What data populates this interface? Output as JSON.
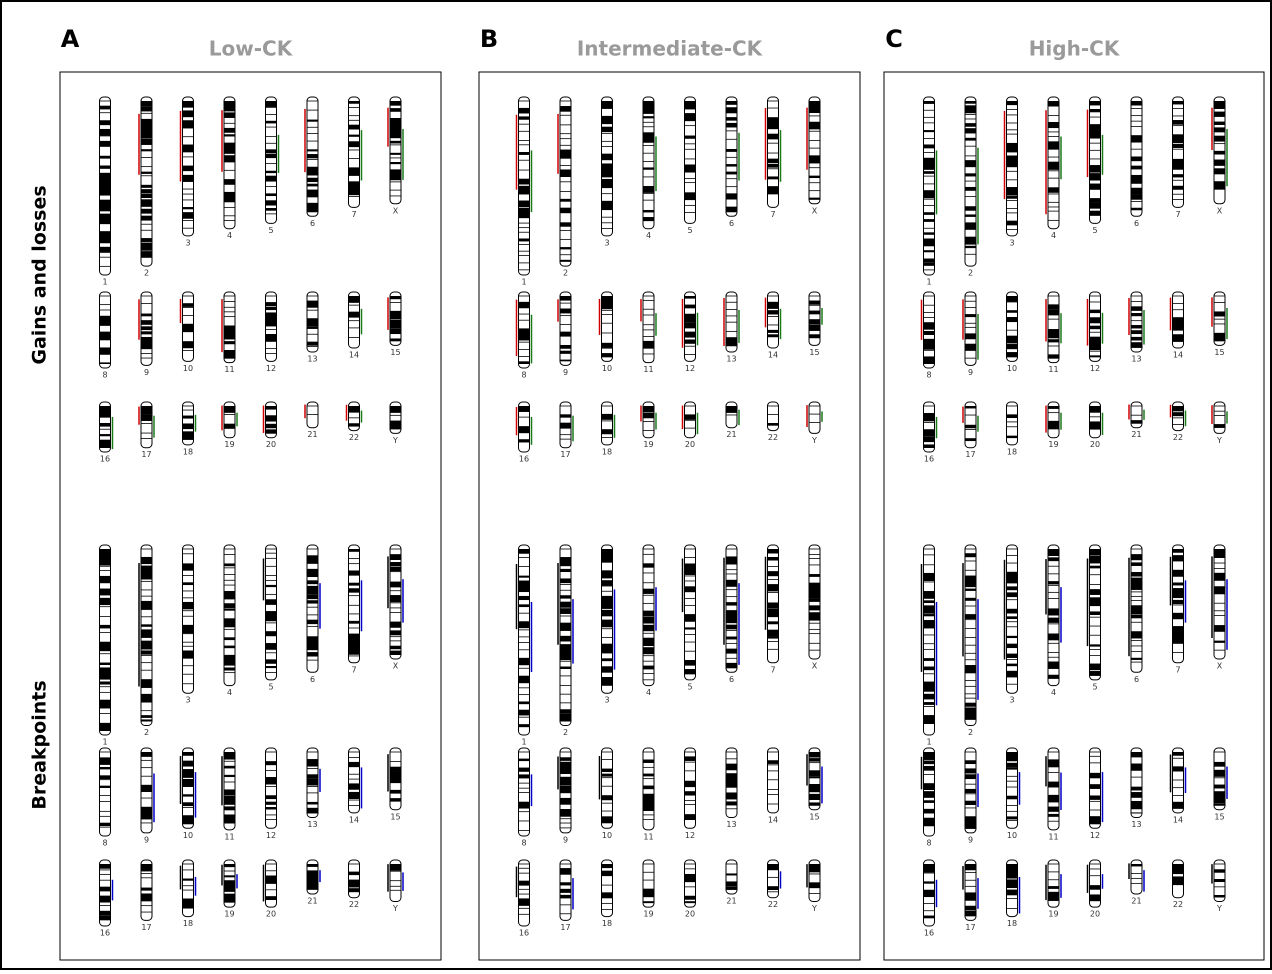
{
  "panels": [
    {
      "letter": "A",
      "title": "Low-CK"
    },
    {
      "letter": "B",
      "title": "Intermediate-CK"
    },
    {
      "letter": "C",
      "title": "High-CK"
    }
  ],
  "row_labels": [
    "Gains and losses",
    "Breakpoints"
  ],
  "chromosomes": [
    "1",
    "2",
    "3",
    "4",
    "5",
    "6",
    "7",
    "X",
    "8",
    "9",
    "10",
    "11",
    "12",
    "13",
    "14",
    "15",
    "16",
    "17",
    "18",
    "19",
    "20",
    "21",
    "22",
    "Y"
  ]
}
